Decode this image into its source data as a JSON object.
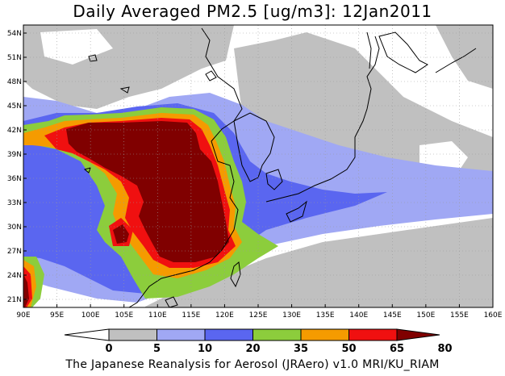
{
  "title": "Daily Averaged PM2.5 [ug/m3]: 12Jan2011",
  "footer": "The Japanese Reanalysis for Aerosol (JRAero) v1.0 MRI/KU_RIAM",
  "chart_data": {
    "type": "heatmap",
    "title": "Daily Averaged PM2.5 [ug/m3]: 12Jan2011",
    "x_ticks": [
      "90E",
      "95E",
      "100E",
      "105E",
      "110E",
      "115E",
      "120E",
      "125E",
      "130E",
      "135E",
      "140E",
      "145E",
      "150E",
      "155E",
      "160E"
    ],
    "y_ticks": [
      "21N",
      "24N",
      "27N",
      "30N",
      "33N",
      "36N",
      "39N",
      "42N",
      "45N",
      "48N",
      "51N",
      "54N"
    ],
    "xlim": [
      90,
      160
    ],
    "ylim": [
      20,
      55
    ],
    "grid": true,
    "colorbar": {
      "levels": [
        "0",
        "5",
        "10",
        "20",
        "35",
        "50",
        "65",
        "80"
      ],
      "colors": [
        "#ffffff",
        "#c0c0c0",
        "#a0a8f4",
        "#5a66f0",
        "#8ccd3c",
        "#f59b00",
        "#f01010",
        "#800000"
      ]
    }
  },
  "colors": {
    "land_outline": "#000000",
    "grid": "#b0b0b0"
  }
}
